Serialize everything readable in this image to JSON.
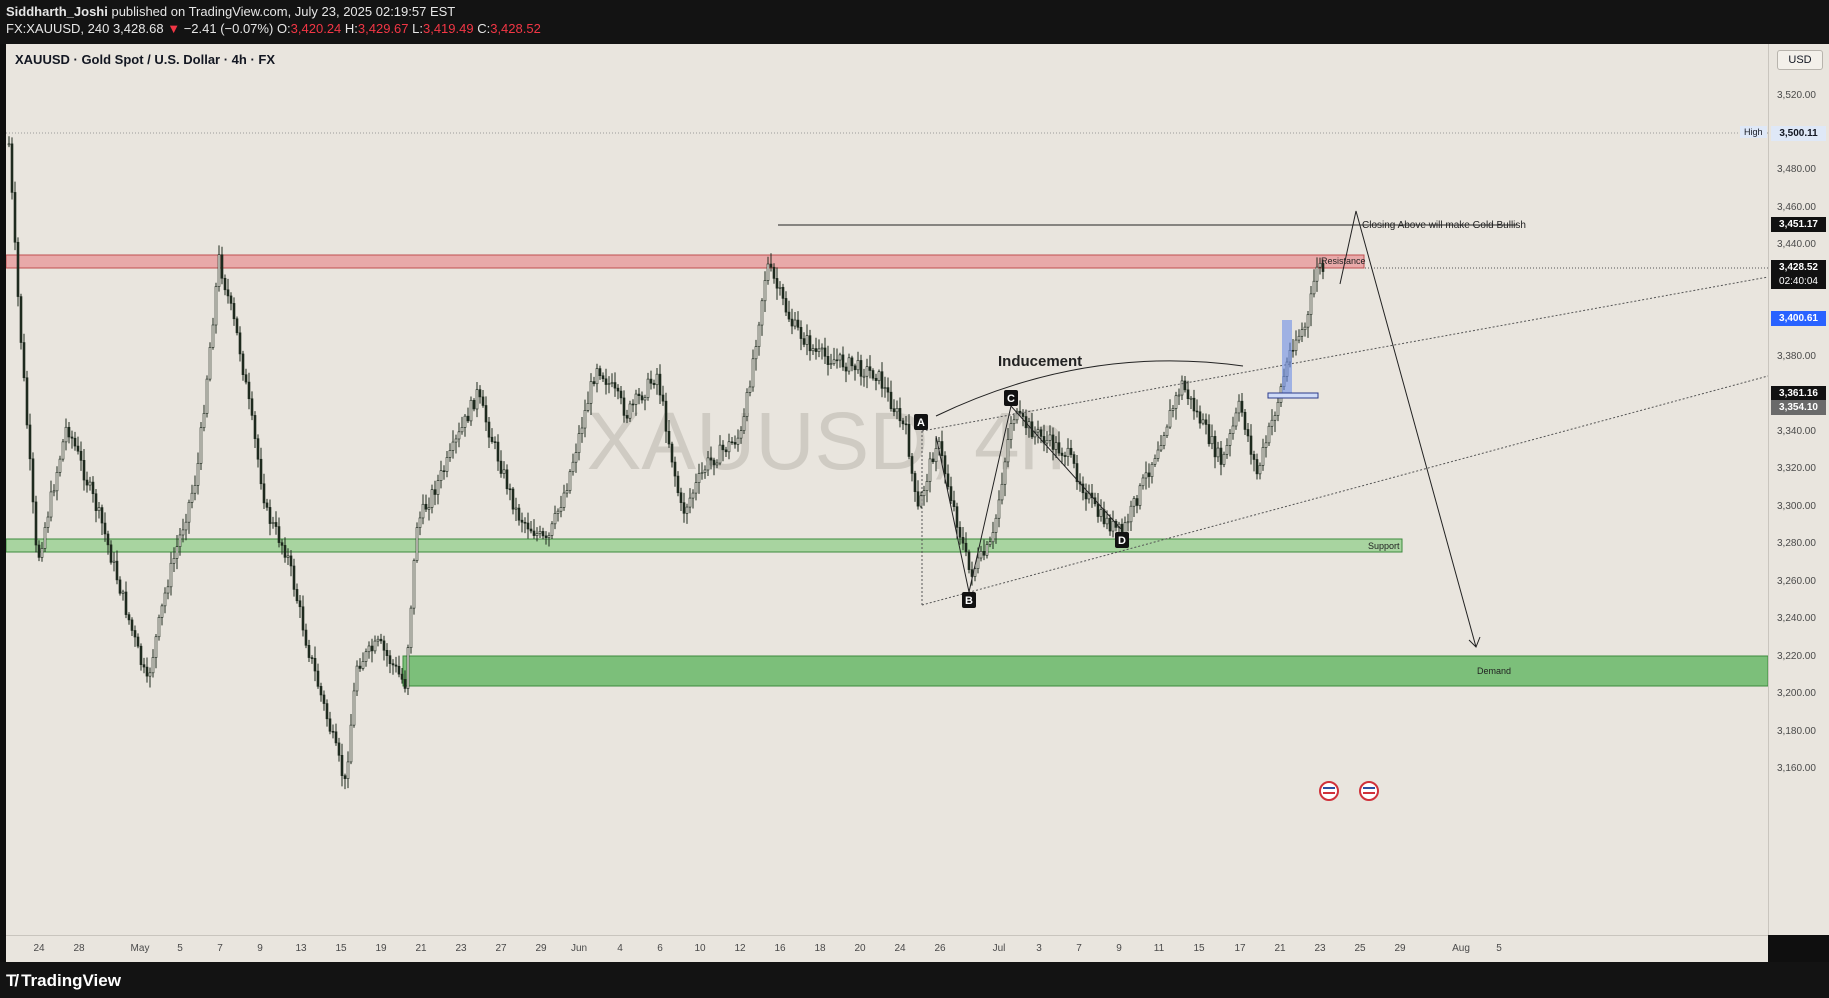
{
  "header": {
    "publisher": "Siddharth_Joshi",
    "published_text": " published on TradingView.com, July 23, 2025 02:19:57 EST",
    "symbol": "FX:XAUUSD, 240",
    "last": "3,428.68",
    "change": "−2.41 (−0.07%)",
    "o_label": "O:",
    "open": "3,420.24",
    "h_label": "H:",
    "high": "3,429.67",
    "l_label": "L:",
    "low": "3,419.49",
    "c_label": "C:",
    "close": "3,428.52"
  },
  "chart_title": "XAUUSD · Gold Spot / U.S. Dollar · 4h · FX",
  "watermark": "XAUUSD, 4h",
  "currency": "USD",
  "y_ticks": [
    "3,520.00",
    "3,480.00",
    "3,460.00",
    "3,440.00",
    "3,380.00",
    "3,340.00",
    "3,320.00",
    "3,300.00",
    "3,280.00",
    "3,260.00",
    "3,240.00",
    "3,220.00",
    "3,200.00",
    "3,180.00",
    "3,160.00"
  ],
  "price_labels": {
    "high_tag": "High",
    "high_value": "3,500.11",
    "level_1": "3,451.17",
    "current": "3,428.52",
    "countdown": "02:40:04",
    "blue": "3,400.61",
    "level_2": "3,361.16",
    "level_3": "3,354.10"
  },
  "x_ticks": [
    "24",
    "28",
    "May",
    "5",
    "7",
    "9",
    "13",
    "15",
    "19",
    "21",
    "23",
    "27",
    "29",
    "Jun",
    "4",
    "6",
    "10",
    "12",
    "16",
    "18",
    "20",
    "24",
    "26",
    "Jul",
    "3",
    "7",
    "9",
    "11",
    "15",
    "17",
    "21",
    "23",
    "25",
    "29",
    "Aug",
    "5"
  ],
  "annotations": {
    "closing_above": "Closing Above will make Gold Bullish",
    "resistance": "Resistance",
    "support": "Support",
    "demand": "Demand",
    "inducement": "Inducement",
    "point_a": "A",
    "point_b": "B",
    "point_c": "C",
    "point_d": "D"
  },
  "colors": {
    "background": "#e9e5de",
    "resistance_zone": "#e8a9a9",
    "support_zone": "#a8d4a0",
    "demand_zone": "#7cbf7a",
    "candle": "#2a3a2a",
    "blue_label": "#2962ff"
  },
  "footer": {
    "brand": "TradingView"
  }
}
